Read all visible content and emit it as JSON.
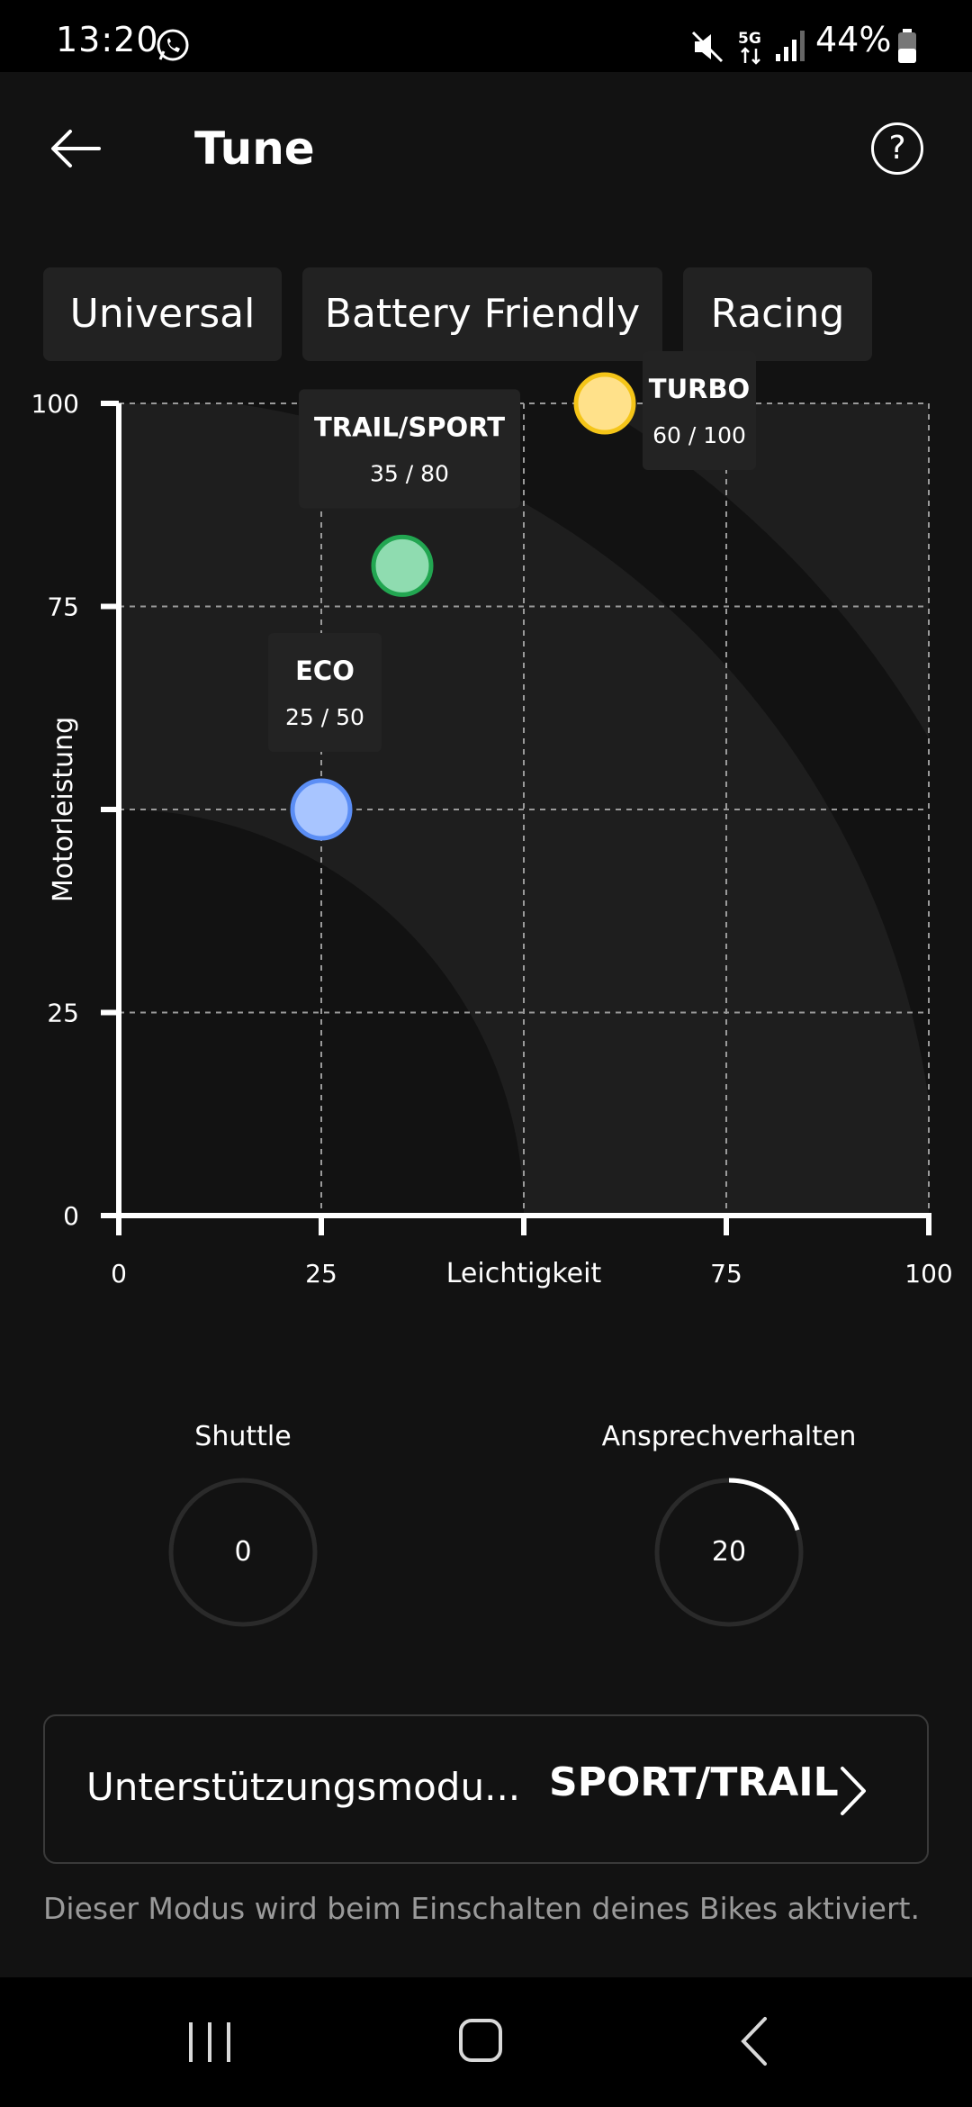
{
  "status_bar": {
    "time": "13:20",
    "battery": "44%",
    "network": "5G",
    "icons": [
      "whatsapp-icon",
      "mute-icon",
      "network-5g-icon",
      "signal-icon",
      "battery-icon"
    ]
  },
  "header": {
    "title": "Tune",
    "back_icon": "arrow-left-icon",
    "help_icon": "question-circle-icon",
    "help_glyph": "?"
  },
  "presets": [
    "Universal",
    "Battery Friendly",
    "Racing"
  ],
  "chart_data": {
    "type": "scatter",
    "xlabel": "Leichtigkeit",
    "ylabel": "Motorleistung",
    "xlim": [
      0,
      100
    ],
    "ylim": [
      0,
      100
    ],
    "x_ticks": [
      "0",
      "25",
      "",
      "75",
      "100"
    ],
    "y_ticks": [
      "0",
      "25",
      "",
      "75",
      "100"
    ],
    "grid": true,
    "points": [
      {
        "name": "ECO",
        "x": 25,
        "y": 50,
        "label": "25 / 50",
        "color": "#a8c5ff",
        "border": "#5b8ef5"
      },
      {
        "name": "TRAIL/SPORT",
        "x": 35,
        "y": 80,
        "label": "35 / 80",
        "color": "#8fdcb0",
        "border": "#22a651"
      },
      {
        "name": "TURBO",
        "x": 60,
        "y": 100,
        "label": "60 / 100",
        "color": "#ffe18a",
        "border": "#f5c518"
      }
    ],
    "colors": {
      "background": "#121212",
      "band": "#1e1e1e",
      "axis": "#ffffff",
      "grid": "#9a9a9a"
    }
  },
  "dials": [
    {
      "label": "Shuttle",
      "value": "0",
      "fraction": 0
    },
    {
      "label": "Ansprechverhalten",
      "value": "20",
      "fraction": 0.2
    }
  ],
  "mode": {
    "label": "Unterstützungsmodu...",
    "value": "SPORT/TRAIL",
    "chevron_icon": "chevron-right-icon",
    "hint": "Dieser Modus wird beim Einschalten deines Bikes aktiviert."
  },
  "nav_bar": {
    "icons": [
      "recents-icon",
      "home-icon",
      "back-nav-icon"
    ]
  }
}
